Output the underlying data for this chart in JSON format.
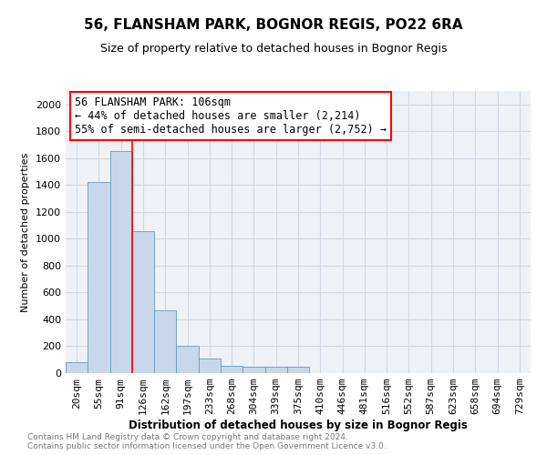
{
  "title": "56, FLANSHAM PARK, BOGNOR REGIS, PO22 6RA",
  "subtitle": "Size of property relative to detached houses in Bognor Regis",
  "xlabel": "Distribution of detached houses by size in Bognor Regis",
  "ylabel": "Number of detached properties",
  "bar_color": "#c8d8ea",
  "bar_edge_color": "#6699bb",
  "categories": [
    "20sqm",
    "55sqm",
    "91sqm",
    "126sqm",
    "162sqm",
    "197sqm",
    "233sqm",
    "268sqm",
    "304sqm",
    "339sqm",
    "375sqm",
    "410sqm",
    "446sqm",
    "481sqm",
    "516sqm",
    "552sqm",
    "587sqm",
    "623sqm",
    "658sqm",
    "694sqm",
    "729sqm"
  ],
  "values": [
    80,
    1420,
    1650,
    1060,
    470,
    200,
    110,
    55,
    50,
    50,
    50,
    0,
    0,
    0,
    0,
    0,
    0,
    0,
    0,
    0,
    0
  ],
  "vline_x_index": 2.5,
  "annotation_line1": "56 FLANSHAM PARK: 106sqm",
  "annotation_line2": "← 44% of detached houses are smaller (2,214)",
  "annotation_line3": "55% of semi-detached houses are larger (2,752) →",
  "ylim": [
    0,
    2100
  ],
  "yticks": [
    0,
    200,
    400,
    600,
    800,
    1000,
    1200,
    1400,
    1600,
    1800,
    2000
  ],
  "footer_line1": "Contains HM Land Registry data © Crown copyright and database right 2024.",
  "footer_line2": "Contains public sector information licensed under the Open Government Licence v3.0.",
  "background_color": "#eef2f7",
  "grid_color": "#d0d8e4"
}
